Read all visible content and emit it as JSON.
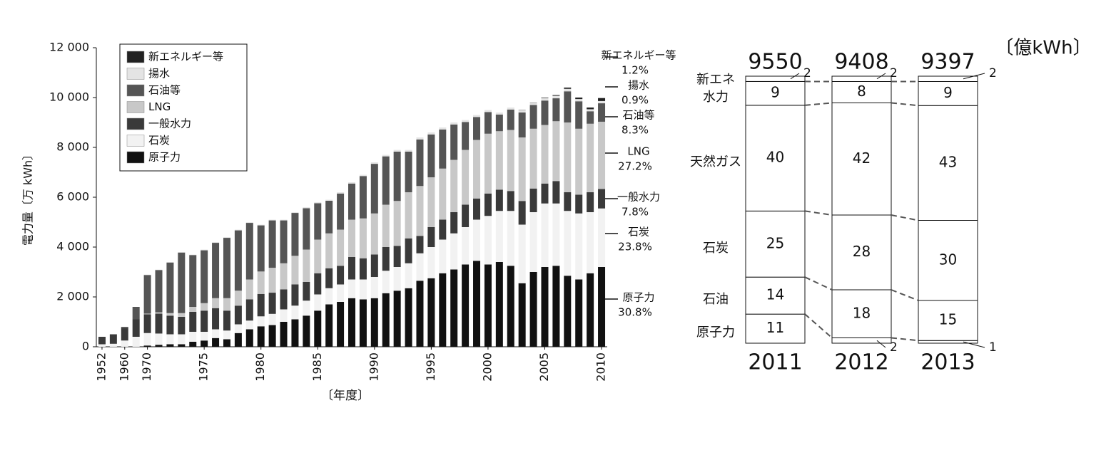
{
  "chart_data": [
    {
      "type": "bar",
      "stacked": true,
      "y_label": "電力量〔万 kWh〕",
      "x_label": "〔年度〕",
      "categories": [
        "1952",
        null,
        "1960",
        null,
        "1970",
        null,
        null,
        null,
        null,
        "1975",
        null,
        null,
        null,
        null,
        "1980",
        null,
        null,
        null,
        null,
        "1985",
        null,
        null,
        null,
        null,
        "1990",
        null,
        null,
        null,
        null,
        "1995",
        null,
        null,
        null,
        null,
        "2000",
        null,
        null,
        null,
        null,
        "2005",
        null,
        null,
        null,
        null,
        "2010"
      ],
      "ylim": [
        0,
        12000
      ],
      "yticks": [
        0,
        {
          "value": 2000,
          "label": "2 000"
        },
        {
          "value": 4000,
          "label": "4 000"
        },
        {
          "value": 6000,
          "label": "6 000"
        },
        {
          "value": 8000,
          "label": "8 000"
        },
        {
          "value": 10000,
          "label": "10 000"
        },
        {
          "value": 12000,
          "label": "12 000"
        }
      ],
      "series": [
        {
          "name": "原子力",
          "share": "30.8%",
          "color": "#111111",
          "values": [
            0,
            0,
            0,
            0,
            50,
            80,
            100,
            100,
            200,
            250,
            350,
            300,
            550,
            700,
            820,
            870,
            1000,
            1100,
            1250,
            1450,
            1700,
            1800,
            1950,
            1900,
            1950,
            2150,
            2250,
            2350,
            2650,
            2750,
            2950,
            3100,
            3300,
            3450,
            3300,
            3400,
            3250,
            2550,
            3000,
            3200,
            3250,
            2850,
            2700,
            2950,
            3200
          ]
        },
        {
          "name": "石炭",
          "share": "23.8%",
          "color": "#f2f2f2",
          "values": [
            100,
            120,
            250,
            400,
            500,
            450,
            400,
            400,
            400,
            350,
            350,
            350,
            350,
            350,
            400,
            450,
            500,
            550,
            600,
            650,
            650,
            700,
            750,
            800,
            850,
            900,
            950,
            1000,
            1100,
            1250,
            1350,
            1450,
            1500,
            1650,
            1950,
            2050,
            2200,
            2350,
            2400,
            2550,
            2500,
            2600,
            2650,
            2450,
            2350
          ]
        },
        {
          "name": "一般水力",
          "share": "7.8%",
          "color": "#3a3a3a",
          "values": [
            300,
            380,
            500,
            700,
            750,
            800,
            750,
            700,
            800,
            850,
            850,
            800,
            750,
            850,
            900,
            850,
            800,
            850,
            750,
            850,
            800,
            750,
            900,
            850,
            900,
            950,
            850,
            1000,
            700,
            800,
            800,
            850,
            900,
            850,
            900,
            850,
            800,
            950,
            950,
            800,
            900,
            750,
            750,
            800,
            780
          ]
        },
        {
          "name": "LNG",
          "share": "27.2%",
          "color": "#c8c8c8",
          "values": [
            0,
            0,
            0,
            0,
            30,
            50,
            100,
            150,
            200,
            300,
            400,
            500,
            600,
            800,
            900,
            1000,
            1050,
            1150,
            1300,
            1350,
            1400,
            1450,
            1500,
            1600,
            1650,
            1700,
            1800,
            1850,
            2000,
            2000,
            2050,
            2100,
            2200,
            2350,
            2400,
            2350,
            2450,
            2550,
            2400,
            2350,
            2400,
            2800,
            2650,
            2750,
            2700
          ]
        },
        {
          "name": "石油等",
          "share": "8.3%",
          "color": "#555555",
          "values": [
            0,
            0,
            50,
            500,
            1550,
            1700,
            2030,
            2430,
            2080,
            2120,
            2220,
            2420,
            2420,
            2270,
            1850,
            1900,
            1720,
            1720,
            1660,
            1460,
            1310,
            1450,
            1450,
            1700,
            1990,
            1940,
            1980,
            1630,
            1870,
            1720,
            1570,
            1420,
            1120,
            920,
            870,
            670,
            820,
            1000,
            950,
            980,
            920,
            1250,
            1100,
            500,
            740
          ]
        },
        {
          "name": "揚水",
          "share": "0.9%",
          "color": "#e4e4e4",
          "values": [
            0,
            0,
            0,
            0,
            20,
            20,
            20,
            20,
            20,
            30,
            30,
            30,
            30,
            30,
            30,
            30,
            30,
            30,
            40,
            40,
            40,
            50,
            50,
            50,
            60,
            60,
            70,
            70,
            80,
            80,
            80,
            80,
            80,
            80,
            80,
            80,
            80,
            90,
            90,
            100,
            100,
            100,
            90,
            80,
            90
          ]
        },
        {
          "name": "新エネルギー等",
          "share": "1.2%",
          "color": "#222222",
          "values": [
            0,
            0,
            0,
            0,
            0,
            0,
            0,
            0,
            0,
            0,
            0,
            0,
            0,
            0,
            0,
            0,
            0,
            0,
            0,
            0,
            0,
            0,
            0,
            0,
            0,
            0,
            0,
            0,
            0,
            0,
            0,
            0,
            0,
            0,
            0,
            0,
            0,
            10,
            10,
            20,
            30,
            50,
            60,
            70,
            120
          ]
        }
      ]
    },
    {
      "type": "bar100",
      "unit": "〔億kWh〕",
      "categories": [
        "2011",
        "2012",
        "2013"
      ],
      "totals": [
        9550,
        9408,
        9397
      ],
      "series": [
        {
          "name": "原子力",
          "values": [
            11,
            2,
            1
          ]
        },
        {
          "name": "石油",
          "values": [
            14,
            18,
            15
          ]
        },
        {
          "name": "石炭",
          "values": [
            25,
            28,
            30
          ]
        },
        {
          "name": "天然ガス",
          "values": [
            40,
            42,
            43
          ]
        },
        {
          "name": "水力",
          "values": [
            9,
            8,
            9
          ]
        },
        {
          "name": "新エネ",
          "values": [
            2,
            2,
            2
          ]
        }
      ]
    }
  ]
}
